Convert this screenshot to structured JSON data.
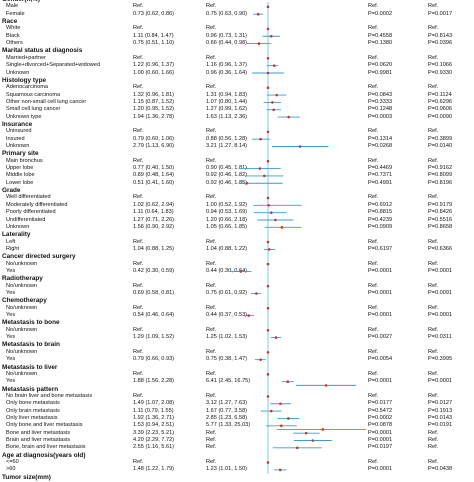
{
  "colors": {
    "ci_line": "#3a9bd5",
    "point": "#c0392b",
    "ref_line": "#5bc0de",
    "text": "#111111"
  },
  "rows": [
    {
      "type": "section",
      "label": "Gender(n,%)"
    },
    {
      "type": "item",
      "label": "Male",
      "c1": "Ref.",
      "c2": "Ref.",
      "c3": "Ref.",
      "c4": "Ref."
    },
    {
      "type": "item",
      "label": "Female",
      "c1": "0.73 (0.62, 0.86)",
      "c2": "0.75 (0.63, 0.90)",
      "c3": "P=0.0002",
      "c4": "P=0.0017"
    },
    {
      "type": "section",
      "label": "Race"
    },
    {
      "type": "item",
      "label": "White",
      "c1": "Ref.",
      "c2": "Ref.",
      "c3": "Ref.",
      "c4": "Ref."
    },
    {
      "type": "item",
      "label": "Black",
      "c1": "1.11 (0.84, 1.47)",
      "c2": "0.96 (0.73, 1.31)",
      "c3": "P=0.4558",
      "c4": "P=0.8143"
    },
    {
      "type": "item",
      "label": "Others",
      "c1": "0.75 (0.51, 1.10)",
      "c2": "0.66 (0.44, 0.98)",
      "c3": "P=0.1380",
      "c4": "P=0.0396"
    },
    {
      "type": "section",
      "label": "Marital status at diagnosis"
    },
    {
      "type": "item",
      "label": "Married+partner",
      "c1": "Ref.",
      "c2": "Ref.",
      "c3": "Ref.",
      "c4": "Ref."
    },
    {
      "type": "item",
      "label": "Single+divorced+Separated+widowed",
      "c1": "1.22 (0.96, 1.37)",
      "c2": "1.16 (0.96, 1.37)",
      "c3": "P=0.0620",
      "c4": "P=0.1066"
    },
    {
      "type": "item",
      "label": "Unknown",
      "c1": "1.00 (0.60, 1.66)",
      "c2": "0.96 (0.36, 1.64)",
      "c3": "P=0.9981",
      "c4": "P=0.9330"
    },
    {
      "type": "section",
      "label": "Histology type"
    },
    {
      "type": "item",
      "label": "Adenocarcinoma",
      "c1": "Ref.",
      "c2": "Ref.",
      "c3": "Ref.",
      "c4": "Ref."
    },
    {
      "type": "item",
      "label": "Squamous carcinoma",
      "c1": "1.32 (0.96, 1.81)",
      "c2": "1.31 (0.94, 1.83)",
      "c3": "P=0.0843",
      "c4": "P=0.1124"
    },
    {
      "type": "item",
      "label": "Other non-small cell lung cancer",
      "c1": "1.15 (0.87, 1.52)",
      "c2": "1.07 (0.80, 1.44)",
      "c3": "P=0.3333",
      "c4": "P=0.6296"
    },
    {
      "type": "item",
      "label": "Small cell lung cancer",
      "c1": "1.20 (0.95, 1.52)",
      "c2": "1.27 (0.99, 1.62)",
      "c3": "P=0.1248",
      "c4": "P=0.0606"
    },
    {
      "type": "item",
      "label": "Unknown type",
      "c1": "1.94 (1.36, 2.78)",
      "c2": "1.63 (1.13, 2.36)",
      "c3": "P=0.0003",
      "c4": "P=0.0090"
    },
    {
      "type": "section",
      "label": "Insurance"
    },
    {
      "type": "item",
      "label": "Uninsured",
      "c1": "Ref.",
      "c2": "Ref.",
      "c3": "Ref.",
      "c4": "Ref."
    },
    {
      "type": "item",
      "label": "Insured",
      "c1": "0.79 (0.60, 1.06)",
      "c2": "0.88 (0.56, 1.28)",
      "c3": "P=0.1314",
      "c4": "P=0.3899"
    },
    {
      "type": "item",
      "label": "Unknown",
      "c1": "2.79 (1.13, 6.90)",
      "c2": "3.21 (1.27, 8.14)",
      "c3": "P=0.0268",
      "c4": "P=0.0140"
    },
    {
      "type": "section",
      "label": "Primary site"
    },
    {
      "type": "item",
      "label": "Main bronchus",
      "c1": "Ref.",
      "c2": "Ref.",
      "c3": "Ref.",
      "c4": "Ref."
    },
    {
      "type": "item",
      "label": "Upper lobe",
      "c1": "0.77 (0.40, 1.50)",
      "c2": "0.90 (0.45, 1.81)",
      "c3": "P=0.4469",
      "c4": "P=0.9162"
    },
    {
      "type": "item",
      "label": "Middle lobe",
      "c1": "0.89 (0.48, 1.64)",
      "c2": "0.92 (0.46, 1.82)",
      "c3": "P=0.7371",
      "c4": "P=0.8099"
    },
    {
      "type": "item",
      "label": "Lower lobe",
      "c1": "0.51 (0.41, 1.60)",
      "c2": "0.92 (0.46, 1.85)",
      "c3": "P=0.4991",
      "c4": "P=0.8196"
    },
    {
      "type": "section",
      "label": "Grade"
    },
    {
      "type": "item",
      "label": "Well differentiated",
      "c1": "Ref.",
      "c2": "Ref.",
      "c3": "Ref.",
      "c4": "Ref."
    },
    {
      "type": "item",
      "label": "Moderately differentiated",
      "c1": "1.02 (0.62, 2.94)",
      "c2": "1.00 (0.52, 1.92)",
      "c3": "P=0.6912",
      "c4": "P=0.9179"
    },
    {
      "type": "item",
      "label": "Poorly differentiated",
      "c1": "1.11 (0.64, 1.83)",
      "c2": "0.94 (0.53, 1.69)",
      "c3": "P=0.8815",
      "c4": "P=0.8426"
    },
    {
      "type": "item",
      "label": "Undifferentiated",
      "c1": "1.27 (0.71, 2.26)",
      "c2": "1.20 (0.66, 2.18)",
      "c3": "P=0.4239",
      "c4": "P=0.5516"
    },
    {
      "type": "item",
      "label": "Unknown",
      "c1": "1.56 (0.90, 2.92)",
      "c2": "1.05 (0.66, 1.85)",
      "c3": "P=0.0909",
      "c4": "P=0.8658"
    },
    {
      "type": "section",
      "label": "Laterality"
    },
    {
      "type": "item",
      "label": "Left",
      "c1": "Ref.",
      "c2": "Ref.",
      "c3": "Ref.",
      "c4": "Ref."
    },
    {
      "type": "item",
      "label": "Right",
      "c1": "1.04 (0.88, 1.25)",
      "c2": "1.04 (0.88, 1.22)",
      "c3": "P=0.6197",
      "c4": "P=0.6366"
    },
    {
      "type": "section",
      "label": "Cancer directed surgery"
    },
    {
      "type": "item",
      "label": "No/unknown",
      "c1": "Ref.",
      "c2": "Ref.",
      "c3": "Ref.",
      "c4": "Ref."
    },
    {
      "type": "item",
      "label": "Yes",
      "c1": "0.42 (0.30, 0.59)",
      "c2": "0.44 (0.30, 0.64)",
      "c3": "P=0.0001",
      "c4": "P=0.0001"
    },
    {
      "type": "section",
      "label": "Radiotherapy"
    },
    {
      "type": "item",
      "label": "No/unknown",
      "c1": "Ref.",
      "c2": "Ref.",
      "c3": "Ref.",
      "c4": "Ref."
    },
    {
      "type": "item",
      "label": "Yes",
      "c1": "0.69 (0.58, 0.81)",
      "c2": "0.75 (0.61, 0.92)",
      "c3": "P=0.0001",
      "c4": "P=0.0091"
    },
    {
      "type": "section",
      "label": "Chemotherapy"
    },
    {
      "type": "item",
      "label": "No/unknown",
      "c1": "Ref.",
      "c2": "Ref.",
      "c3": "Ref.",
      "c4": "Ref."
    },
    {
      "type": "item",
      "label": "Yes",
      "c1": "0.54 (0.46, 0.64)",
      "c2": "0.44 (0.37, 0.53)",
      "c3": "P=0.0001",
      "c4": "P=0.0001"
    },
    {
      "type": "section",
      "label": "Metastasis to bone"
    },
    {
      "type": "item",
      "label": "No/unknown",
      "c1": "Ref.",
      "c2": "Ref.",
      "c3": "Ref.",
      "c4": "Ref."
    },
    {
      "type": "item",
      "label": "Yes",
      "c1": "1.29 (1.09, 1.52)",
      "c2": "1.25 (1.02, 1.53)",
      "c3": "P=0.0027",
      "c4": "P=0.0311"
    },
    {
      "type": "section",
      "label": "Metastasis to brain"
    },
    {
      "type": "item",
      "label": "No/unknown",
      "c1": "Ref.",
      "c2": "Ref.",
      "c3": "Ref.",
      "c4": "Ref."
    },
    {
      "type": "item",
      "label": "Yes",
      "c1": "0.79 (0.66, 0.93)",
      "c2": "0.75 (0.38, 1.47)",
      "c3": "P=0.0054",
      "c4": "P=0.3995"
    },
    {
      "type": "section",
      "label": "Metastasis to liver"
    },
    {
      "type": "item",
      "label": "No/unknown",
      "c1": "Ref.",
      "c2": "Ref.",
      "c3": "Ref.",
      "c4": "Ref."
    },
    {
      "type": "item",
      "label": "Yes",
      "c1": "1.88 (1.56, 2.28)",
      "c2": "6.41 (2.45, 16.75)",
      "c3": "P=0.0001",
      "c4": "P=0.0001"
    },
    {
      "type": "section",
      "label": "Metastasis pattern"
    },
    {
      "type": "item",
      "label": "No brain liver and bone metastasis",
      "c1": "Ref.",
      "c2": "Ref.",
      "c3": "Ref.",
      "c4": "Ref."
    },
    {
      "type": "item",
      "label": "Only bone metastasis",
      "c1": "1.49 (1.07, 2.08)",
      "c2": "3.12 (1.27, 7.63)",
      "c3": "P=0.0177",
      "c4": "P=0.0127"
    },
    {
      "type": "item",
      "label": "Only brain metastasis",
      "c1": "1.11 (0.79, 1.55)",
      "c2": "1.67 (0.77, 3.58)",
      "c3": "P=0.5472",
      "c4": "P=0.1913"
    },
    {
      "type": "item",
      "label": "Only liver metastasis",
      "c1": "1.92 (1.36, 2.71)",
      "c2": "2.85 (1.23, 6.58)",
      "c3": "P=0.0002",
      "c4": "P=0.0143"
    },
    {
      "type": "item",
      "label": "Only bone and liver metastasis",
      "c1": "1.53 (0.94, 2.51)",
      "c2": "5.77 (1.33, 25.03)",
      "c3": "P=0.0878",
      "c4": "P=0.0191"
    },
    {
      "type": "item",
      "label": "Bone and liver metastasis",
      "c1": "3.39 (2.23, 5.21)",
      "c2": "Ref.",
      "c3": "P=0.0001",
      "c4": "Ref."
    },
    {
      "type": "item",
      "label": "Brain and liver metastasis",
      "c1": "4.20 (2.29, 7.72)",
      "c2": "Ref.",
      "c3": "P=0.0001",
      "c4": "Ref."
    },
    {
      "type": "item",
      "label": "Bone, brain and liver metastasis",
      "c1": "2.55 (1.16, 5.61)",
      "c2": "Ref.",
      "c3": "P=0.0197",
      "c4": "Ref."
    },
    {
      "type": "section",
      "label": "Age at diagnosis(years old)"
    },
    {
      "type": "item",
      "label": "<=60",
      "c1": "Ref.",
      "c2": "Ref.",
      "c3": "Ref.",
      "c4": "Ref."
    },
    {
      "type": "item",
      "label": ">60",
      "c1": "1.48 (1.22, 1.79)",
      "c2": "1.23 (1.01, 1.50)",
      "c3": "P=0.0001",
      "c4": "P=0.0438"
    },
    {
      "type": "section",
      "label": "Tumor size(mm)"
    }
  ],
  "forest": [
    {
      "row": 1,
      "hr": 1.0,
      "lo": 1.0,
      "hi": 1.0
    },
    {
      "row": 2,
      "hr": 0.73,
      "lo": 0.62,
      "hi": 0.86
    },
    {
      "row": 4,
      "hr": 1.0,
      "lo": 1.0,
      "hi": 1.0
    },
    {
      "row": 5,
      "hr": 1.11,
      "lo": 0.84,
      "hi": 1.47
    },
    {
      "row": 6,
      "hr": 0.75,
      "lo": 0.51,
      "hi": 1.1
    },
    {
      "row": 8,
      "hr": 1.0,
      "lo": 1.0,
      "hi": 1.0
    },
    {
      "row": 9,
      "hr": 1.22,
      "lo": 0.96,
      "hi": 1.37
    },
    {
      "row": 10,
      "hr": 1.0,
      "lo": 0.6,
      "hi": 1.66
    },
    {
      "row": 12,
      "hr": 1.0,
      "lo": 1.0,
      "hi": 1.0
    },
    {
      "row": 13,
      "hr": 1.32,
      "lo": 0.96,
      "hi": 1.81
    },
    {
      "row": 14,
      "hr": 1.15,
      "lo": 0.87,
      "hi": 1.52
    },
    {
      "row": 15,
      "hr": 1.2,
      "lo": 0.95,
      "hi": 1.52
    },
    {
      "row": 16,
      "hr": 1.94,
      "lo": 1.36,
      "hi": 2.78
    },
    {
      "row": 18,
      "hr": 1.0,
      "lo": 1.0,
      "hi": 1.0
    },
    {
      "row": 19,
      "hr": 0.79,
      "lo": 0.6,
      "hi": 1.06
    },
    {
      "row": 20,
      "hr": 2.79,
      "lo": 1.13,
      "hi": 6.9
    },
    {
      "row": 22,
      "hr": 1.0,
      "lo": 1.0,
      "hi": 1.0
    },
    {
      "row": 23,
      "hr": 0.77,
      "lo": 0.4,
      "hi": 1.5
    },
    {
      "row": 24,
      "hr": 0.89,
      "lo": 0.48,
      "hi": 1.64
    },
    {
      "row": 25,
      "hr": 0.51,
      "lo": 0.41,
      "hi": 1.6
    },
    {
      "row": 27,
      "hr": 1.0,
      "lo": 1.0,
      "hi": 1.0
    },
    {
      "row": 28,
      "hr": 1.02,
      "lo": 0.62,
      "hi": 2.94
    },
    {
      "row": 29,
      "hr": 1.11,
      "lo": 0.64,
      "hi": 1.83
    },
    {
      "row": 30,
      "hr": 1.27,
      "lo": 0.71,
      "hi": 2.26
    },
    {
      "row": 31,
      "hr": 1.56,
      "lo": 0.9,
      "hi": 2.92
    },
    {
      "row": 33,
      "hr": 1.0,
      "lo": 1.0,
      "hi": 1.0
    },
    {
      "row": 34,
      "hr": 1.04,
      "lo": 0.88,
      "hi": 1.25
    },
    {
      "row": 36,
      "hr": 1.0,
      "lo": 1.0,
      "hi": 1.0
    },
    {
      "row": 37,
      "hr": 0.42,
      "lo": 0.3,
      "hi": 0.59
    },
    {
      "row": 39,
      "hr": 1.0,
      "lo": 1.0,
      "hi": 1.0
    },
    {
      "row": 40,
      "hr": 0.69,
      "lo": 0.58,
      "hi": 0.81
    },
    {
      "row": 42,
      "hr": 1.0,
      "lo": 1.0,
      "hi": 1.0
    },
    {
      "row": 43,
      "hr": 0.54,
      "lo": 0.46,
      "hi": 0.64
    },
    {
      "row": 45,
      "hr": 1.0,
      "lo": 1.0,
      "hi": 1.0
    },
    {
      "row": 46,
      "hr": 1.29,
      "lo": 1.09,
      "hi": 1.52
    },
    {
      "row": 48,
      "hr": 1.0,
      "lo": 1.0,
      "hi": 1.0
    },
    {
      "row": 49,
      "hr": 0.79,
      "lo": 0.66,
      "hi": 0.93
    },
    {
      "row": 51,
      "hr": 1.0,
      "lo": 1.0,
      "hi": 1.0
    },
    {
      "row": 52,
      "hr": 1.88,
      "lo": 1.56,
      "hi": 2.28
    },
    {
      "row": 52.5,
      "hr": 6.41,
      "lo": 2.45,
      "hi": 16.75
    },
    {
      "row": 54,
      "hr": 1.0,
      "lo": 1.0,
      "hi": 1.0
    },
    {
      "row": 55,
      "hr": 1.49,
      "lo": 1.07,
      "hi": 2.08
    },
    {
      "row": 56,
      "hr": 1.11,
      "lo": 0.79,
      "hi": 1.55
    },
    {
      "row": 57,
      "hr": 1.92,
      "lo": 1.36,
      "hi": 2.71
    },
    {
      "row": 58,
      "hr": 1.53,
      "lo": 0.94,
      "hi": 2.51
    },
    {
      "row": 58.5,
      "hr": 5.77,
      "lo": 1.33,
      "hi": 25.03
    },
    {
      "row": 59,
      "hr": 3.39,
      "lo": 2.23,
      "hi": 5.21
    },
    {
      "row": 60,
      "hr": 4.2,
      "lo": 2.29,
      "hi": 7.72
    },
    {
      "row": 61,
      "hr": 2.55,
      "lo": 1.16,
      "hi": 5.61
    },
    {
      "row": 63,
      "hr": 1.0,
      "lo": 1.0,
      "hi": 1.0
    },
    {
      "row": 64,
      "hr": 1.48,
      "lo": 1.22,
      "hi": 1.79
    }
  ]
}
